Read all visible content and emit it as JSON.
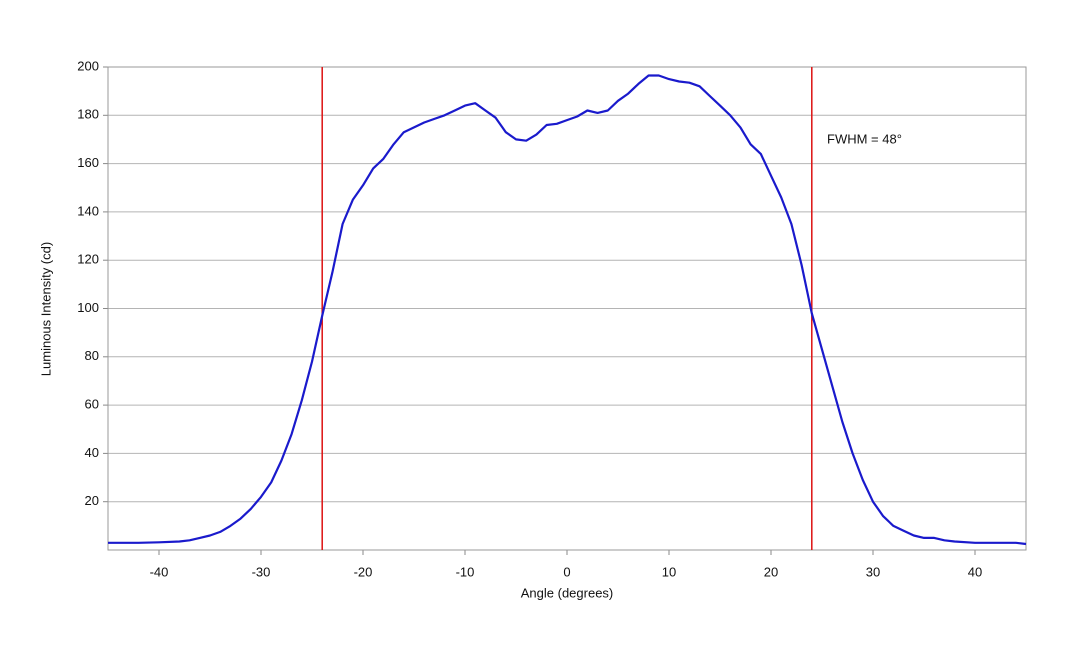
{
  "chart_data": {
    "type": "line",
    "xlabel": "Angle (degrees)",
    "ylabel": "Luminous Intensity (cd)",
    "annotation": "FWHM = 48°",
    "x": [
      -45,
      -44,
      -42,
      -40,
      -38,
      -37,
      -36,
      -35,
      -34,
      -33,
      -32,
      -31,
      -30,
      -29,
      -28,
      -27,
      -26,
      -25,
      -24,
      -23,
      -22,
      -21,
      -20,
      -19,
      -18,
      -17,
      -16,
      -15,
      -14,
      -13,
      -12,
      -11,
      -10,
      -9,
      -8,
      -7,
      -6,
      -5,
      -4,
      -3,
      -2,
      -1,
      0,
      1,
      2,
      3,
      4,
      5,
      6,
      7,
      8,
      9,
      10,
      11,
      12,
      13,
      14,
      15,
      16,
      17,
      18,
      19,
      20,
      21,
      22,
      23,
      24,
      25,
      26,
      27,
      28,
      29,
      30,
      31,
      32,
      33,
      34,
      35,
      36,
      37,
      38,
      40,
      42,
      44,
      45
    ],
    "series": [
      {
        "name": "Luminous Intensity",
        "color": "#1a1acc",
        "values": [
          3,
          3,
          3,
          3.2,
          3.5,
          4,
          5,
          6,
          7.5,
          10,
          13,
          17,
          22,
          28,
          37,
          48,
          62,
          78,
          97,
          115,
          135,
          145,
          151,
          158,
          162,
          168,
          173,
          175,
          177,
          178.5,
          180,
          182,
          184,
          185,
          182,
          179,
          173,
          170,
          169.5,
          172,
          176,
          176.5,
          178,
          179.5,
          182,
          181,
          182,
          186,
          189,
          193,
          196.5,
          196.5,
          195,
          194,
          193.5,
          192,
          188,
          184,
          180,
          175,
          168,
          164,
          155,
          146,
          135,
          118,
          98,
          83,
          68,
          53,
          40,
          29,
          20,
          14,
          10,
          8,
          6,
          5,
          5,
          4,
          3.5,
          3,
          3,
          3,
          2.5
        ]
      }
    ],
    "vlines": [
      -24,
      24
    ],
    "vline_color": "#dd1111",
    "xlim": [
      -45,
      45
    ],
    "xticks": [
      -40,
      -30,
      -20,
      -10,
      0,
      10,
      20,
      30,
      40
    ],
    "ylim": [
      0,
      200
    ],
    "yticks": [
      20,
      40,
      60,
      80,
      100,
      120,
      140,
      160,
      180,
      200
    ],
    "grid": true
  }
}
